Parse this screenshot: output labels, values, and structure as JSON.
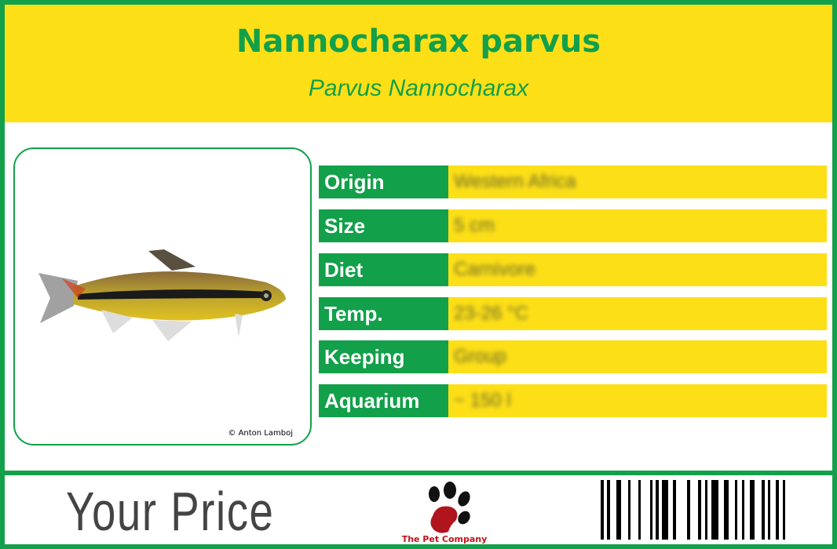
{
  "header": {
    "title": "Nannocharax parvus",
    "subtitle": "Parvus Nannocharax"
  },
  "photo": {
    "credit": "© Anton Lamboj"
  },
  "facts": [
    {
      "label": "Origin",
      "value": "Western Africa"
    },
    {
      "label": "Size",
      "value": "5 cm"
    },
    {
      "label": "Diet",
      "value": "Carnivore"
    },
    {
      "label": "Temp.",
      "value": "23-26 °C"
    },
    {
      "label": "Keeping",
      "value": "Group"
    },
    {
      "label": "Aquarium",
      "value": "~ 150 l"
    }
  ],
  "footer": {
    "price_label": "Your Price",
    "brand": "The Pet Company"
  },
  "colors": {
    "green": "#12a04a",
    "yellow": "#fddf18",
    "brand_red": "#c0141c"
  }
}
